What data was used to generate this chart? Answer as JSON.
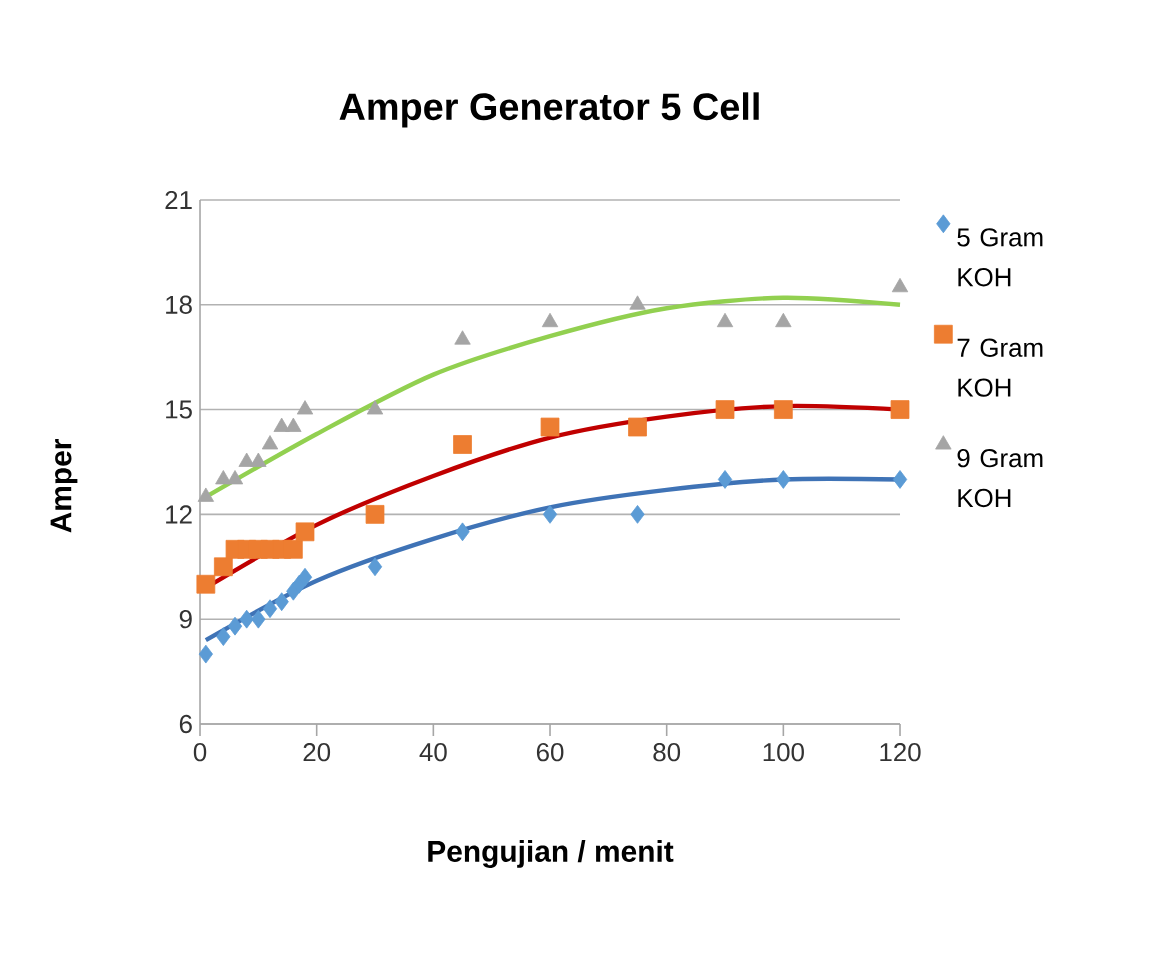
{
  "chart_data": {
    "type": "scatter",
    "title": "Amper Generator 5 Cell",
    "xlabel": "Pengujian / menit",
    "ylabel": "Amper",
    "xlim": [
      0,
      120
    ],
    "ylim": [
      6,
      21
    ],
    "xticks": [
      0,
      20,
      40,
      60,
      80,
      100,
      120
    ],
    "yticks": [
      6,
      9,
      12,
      15,
      18,
      21
    ],
    "grid": "y",
    "legend": "right",
    "series": [
      {
        "name": "5 Gram KOH",
        "color": "#5b9bd5",
        "marker": "diamond",
        "x": [
          1,
          4,
          6,
          8,
          10,
          12,
          14,
          16,
          17,
          18,
          30,
          45,
          60,
          75,
          90,
          100,
          120
        ],
        "values": [
          8,
          8.5,
          8.8,
          9,
          9,
          9.3,
          9.5,
          9.8,
          10,
          10.2,
          10.5,
          11.5,
          12,
          12,
          13,
          13,
          13
        ]
      },
      {
        "name": "7 Gram KOH",
        "color": "#ed7d31",
        "marker": "square",
        "x": [
          1,
          4,
          6,
          8,
          10,
          12,
          14,
          16,
          18,
          30,
          45,
          60,
          75,
          90,
          100,
          120
        ],
        "values": [
          10,
          10.5,
          11,
          11,
          11,
          11,
          11,
          11,
          11.5,
          12,
          14,
          14.5,
          14.5,
          15,
          15,
          15
        ]
      },
      {
        "name": "9 Gram KOH",
        "color": "#a5a5a5",
        "marker": "triangle",
        "x": [
          1,
          4,
          6,
          8,
          10,
          12,
          14,
          16,
          18,
          30,
          45,
          60,
          75,
          90,
          100,
          120
        ],
        "values": [
          12.5,
          13,
          13,
          13.5,
          13.5,
          14,
          14.5,
          14.5,
          15,
          15,
          17,
          17.5,
          18,
          17.5,
          17.5,
          18.5
        ]
      },
      {
        "type": "line",
        "color": "#3f73b6",
        "marker": "none",
        "x": [
          1,
          20,
          40,
          60,
          80,
          100,
          120
        ],
        "values": [
          8.4,
          10.1,
          11.3,
          12.2,
          12.7,
          13.0,
          13.0
        ]
      },
      {
        "type": "line",
        "color": "#c00000",
        "marker": "none",
        "x": [
          1,
          20,
          40,
          60,
          80,
          100,
          120
        ],
        "values": [
          9.9,
          11.7,
          13.1,
          14.2,
          14.8,
          15.1,
          15.0
        ]
      },
      {
        "type": "line",
        "color": "#92d050",
        "marker": "none",
        "x": [
          1,
          20,
          40,
          60,
          80,
          100,
          120
        ],
        "values": [
          12.5,
          14.3,
          16.0,
          17.1,
          17.9,
          18.2,
          18.0
        ]
      }
    ]
  }
}
